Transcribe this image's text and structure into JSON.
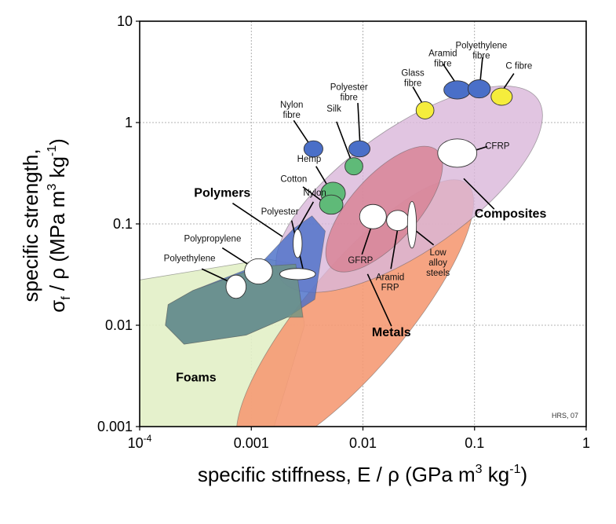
{
  "chart_data": {
    "type": "scatter",
    "title": "",
    "xlabel": "specific stiffness, E / ρ (GPa m",
    "xlabel_sup": "3",
    "xlabel_unit": " kg",
    "xlabel_sup2": "-1",
    "xlabel_end": ")",
    "ylabel_line1": "specific strength,",
    "ylabel_sigma": "σ",
    "ylabel_sub": "f",
    "ylabel_rest": " / ρ (MPa m",
    "ylabel_sup": "3",
    "ylabel_unit": " kg",
    "ylabel_sup2": "-1",
    "ylabel_end": ")",
    "x_scale": "log",
    "y_scale": "log",
    "xlim": [
      0.0001,
      1
    ],
    "ylim": [
      0.001,
      10
    ],
    "grid": true,
    "x_ticks": [
      {
        "value": 0.0001,
        "label": "10",
        "sup": "-4"
      },
      {
        "value": 0.001,
        "label": "0.001",
        "sup": ""
      },
      {
        "value": 0.01,
        "label": "0.01",
        "sup": ""
      },
      {
        "value": 0.1,
        "label": "0.1",
        "sup": ""
      },
      {
        "value": 1,
        "label": "1",
        "sup": ""
      }
    ],
    "y_ticks": [
      {
        "value": 10,
        "label": "10"
      },
      {
        "value": 1,
        "label": "1"
      },
      {
        "value": 0.1,
        "label": "0.1"
      },
      {
        "value": 0.01,
        "label": "0.01"
      },
      {
        "value": 0.001,
        "label": "0.001"
      }
    ],
    "regions": [
      {
        "name": "Foams",
        "color": "#e2f0c6",
        "opacity": 0.9,
        "polygon": [
          [
            0.0001,
            0.028
          ],
          [
            0.0014,
            0.045
          ],
          [
            0.0025,
            0.04
          ],
          [
            0.003,
            0.01
          ],
          [
            0.0016,
            0.001
          ],
          [
            0.0001,
            0.001
          ]
        ]
      },
      {
        "name": "Metals",
        "color": "#f59a74",
        "opacity": 0.9,
        "center": [
          0.0085,
          0.012
        ],
        "rx_dec": 0.46,
        "ry_dec": 1.72,
        "angle_deg": 40
      },
      {
        "name": "Composites",
        "color": "#d9b7d9",
        "opacity": 0.8,
        "center": [
          0.026,
          0.22
        ],
        "rx_dec": 0.55,
        "ry_dec": 1.55,
        "angle_deg": 55
      },
      {
        "name": "Polymers",
        "color": "#4a6fc8",
        "opacity": 0.82,
        "polygon": [
          [
            0.00018,
            0.016
          ],
          [
            0.0003,
            0.022
          ],
          [
            0.0012,
            0.04
          ],
          [
            0.0024,
            0.09
          ],
          [
            0.0035,
            0.12
          ],
          [
            0.0046,
            0.085
          ],
          [
            0.0037,
            0.018
          ],
          [
            0.0021,
            0.012
          ],
          [
            0.0009,
            0.008
          ],
          [
            0.00025,
            0.0065
          ],
          [
            0.00017,
            0.01
          ]
        ]
      }
    ],
    "overlays": [
      {
        "name": "Polymers-Foams overlap",
        "color": "#6d9482",
        "opacity": 0.8,
        "polygon": [
          [
            0.00018,
            0.016
          ],
          [
            0.0003,
            0.022
          ],
          [
            0.0012,
            0.038
          ],
          [
            0.0025,
            0.04
          ],
          [
            0.0029,
            0.012
          ],
          [
            0.0021,
            0.012
          ],
          [
            0.0009,
            0.008
          ],
          [
            0.00025,
            0.0065
          ],
          [
            0.00017,
            0.01
          ]
        ]
      },
      {
        "name": "Composites-Metals overlap",
        "color": "#d88496",
        "opacity": 0.85,
        "center": [
          0.0155,
          0.14
        ],
        "rx_dec": 0.3,
        "ry_dec": 0.78,
        "angle_deg": 42
      }
    ],
    "points": [
      {
        "label": "Nylon fibre",
        "x": 0.0036,
        "y": 0.55,
        "color": "#4a6fc8",
        "w_dec": 0.17,
        "h_dec": 0.16
      },
      {
        "label": "Polyester fibre",
        "x": 0.0093,
        "y": 0.55,
        "color": "#4a6fc8",
        "w_dec": 0.19,
        "h_dec": 0.16
      },
      {
        "label": "Silk",
        "x": 0.0083,
        "y": 0.37,
        "color": "#5fba78",
        "w_dec": 0.16,
        "h_dec": 0.17
      },
      {
        "label": "Hemp",
        "x": 0.0054,
        "y": 0.2,
        "color": "#5fba78",
        "w_dec": 0.22,
        "h_dec": 0.22
      },
      {
        "label": "Cotton",
        "x": 0.0052,
        "y": 0.155,
        "color": "#5fba78",
        "w_dec": 0.21,
        "h_dec": 0.19
      },
      {
        "label": "Glass fibre",
        "x": 0.036,
        "y": 1.32,
        "color": "#f5ed3c",
        "w_dec": 0.16,
        "h_dec": 0.17
      },
      {
        "label": "Aramid fibre",
        "x": 0.07,
        "y": 2.1,
        "color": "#4a6fc8",
        "w_dec": 0.24,
        "h_dec": 0.18
      },
      {
        "label": "Polyethylene fibre",
        "x": 0.11,
        "y": 2.15,
        "color": "#4a6fc8",
        "w_dec": 0.2,
        "h_dec": 0.18
      },
      {
        "label": "C fibre",
        "x": 0.175,
        "y": 1.8,
        "color": "#f5ed3c",
        "w_dec": 0.19,
        "h_dec": 0.17
      },
      {
        "label": "CFRP",
        "x": 0.07,
        "y": 0.5,
        "color": "#ffffff",
        "w_dec": 0.35,
        "h_dec": 0.28
      },
      {
        "label": "GFRP",
        "x": 0.0123,
        "y": 0.118,
        "color": "#ffffff",
        "w_dec": 0.24,
        "h_dec": 0.24
      },
      {
        "label": "Aramid FRP",
        "x": 0.0205,
        "y": 0.108,
        "color": "#ffffff",
        "w_dec": 0.2,
        "h_dec": 0.2
      },
      {
        "label": "Low alloy steels",
        "x": 0.0275,
        "y": 0.098,
        "color": "#ffffff",
        "w_dec": 0.08,
        "h_dec": 0.46
      },
      {
        "label": "Nylon",
        "x": 0.0026,
        "y": 0.064,
        "color": "#ffffff",
        "w_dec": 0.08,
        "h_dec": 0.28
      },
      {
        "label": "Polyester",
        "x": 0.0026,
        "y": 0.032,
        "color": "#ffffff",
        "w_dec": 0.32,
        "h_dec": 0.11
      },
      {
        "label": "Polypropylene",
        "x": 0.00116,
        "y": 0.034,
        "color": "#ffffff",
        "w_dec": 0.25,
        "h_dec": 0.25
      },
      {
        "label": "Polyethylene",
        "x": 0.00073,
        "y": 0.024,
        "color": "#ffffff",
        "w_dec": 0.18,
        "h_dec": 0.23
      }
    ],
    "annotations": [
      {
        "lines": [
          "Polyethylene",
          "fibre"
        ],
        "bold": false,
        "x": 0.115,
        "y": 5.4,
        "anchor": "middle"
      },
      {
        "lines": [
          "Aramid",
          "fibre"
        ],
        "bold": false,
        "x": 0.052,
        "y": 4.5,
        "anchor": "middle"
      },
      {
        "lines": [
          "Glass",
          "fibre"
        ],
        "bold": false,
        "x": 0.028,
        "y": 2.9,
        "anchor": "middle"
      },
      {
        "lines": [
          "C fibre"
        ],
        "bold": false,
        "x": 0.25,
        "y": 3.4,
        "anchor": "middle"
      },
      {
        "lines": [
          "Polyester",
          "fibre"
        ],
        "bold": false,
        "x": 0.0075,
        "y": 2.1,
        "anchor": "middle"
      },
      {
        "lines": [
          "Nylon",
          "fibre"
        ],
        "bold": false,
        "x": 0.0023,
        "y": 1.4,
        "anchor": "middle"
      },
      {
        "lines": [
          "Silk"
        ],
        "bold": false,
        "x": 0.0055,
        "y": 1.28,
        "anchor": "middle"
      },
      {
        "lines": [
          "Hemp"
        ],
        "bold": false,
        "x": 0.0033,
        "y": 0.41,
        "anchor": "middle"
      },
      {
        "lines": [
          "Cotton"
        ],
        "bold": false,
        "x": 0.0024,
        "y": 0.26,
        "anchor": "middle"
      },
      {
        "lines": [
          "Nylon"
        ],
        "bold": false,
        "x": 0.0037,
        "y": 0.19,
        "anchor": "middle"
      },
      {
        "lines": [
          "Polyester"
        ],
        "bold": false,
        "x": 0.0018,
        "y": 0.124,
        "anchor": "middle"
      },
      {
        "lines": [
          "Polypropylene"
        ],
        "bold": false,
        "x": 0.00045,
        "y": 0.067,
        "anchor": "middle"
      },
      {
        "lines": [
          "Polyethylene"
        ],
        "bold": false,
        "x": 0.00028,
        "y": 0.043,
        "anchor": "middle"
      },
      {
        "lines": [
          "CFRP"
        ],
        "bold": false,
        "x": 0.16,
        "y": 0.55,
        "anchor": "middle"
      },
      {
        "lines": [
          "GFRP"
        ],
        "bold": false,
        "x": 0.0095,
        "y": 0.041,
        "anchor": "middle"
      },
      {
        "lines": [
          "Aramid",
          "FRP"
        ],
        "bold": false,
        "x": 0.0175,
        "y": 0.028,
        "anchor": "middle"
      },
      {
        "lines": [
          "Low",
          "alloy",
          "steels"
        ],
        "bold": false,
        "x": 0.047,
        "y": 0.049,
        "anchor": "middle"
      },
      {
        "lines": [
          "Polymers"
        ],
        "bold": true,
        "x": 0.00055,
        "y": 0.185,
        "anchor": "middle"
      },
      {
        "lines": [
          "Composites"
        ],
        "bold": true,
        "x": 0.21,
        "y": 0.115,
        "anchor": "middle"
      },
      {
        "lines": [
          "Metals"
        ],
        "bold": true,
        "x": 0.018,
        "y": 0.0078,
        "anchor": "middle"
      },
      {
        "lines": [
          "Foams"
        ],
        "bold": true,
        "x": 0.00032,
        "y": 0.0028,
        "anchor": "middle"
      }
    ],
    "leaders": [
      {
        "from": [
          0.118,
          4.4
        ],
        "to": [
          0.112,
          2.45
        ]
      },
      {
        "from": [
          0.052,
          3.8
        ],
        "to": [
          0.068,
          2.45
        ]
      },
      {
        "from": [
          0.028,
          2.25
        ],
        "to": [
          0.034,
          1.55
        ]
      },
      {
        "from": [
          0.225,
          3.05
        ],
        "to": [
          0.182,
          2.15
        ]
      },
      {
        "from": [
          0.009,
          1.56
        ],
        "to": [
          0.0094,
          0.64
        ]
      },
      {
        "from": [
          0.0024,
          1.05
        ],
        "to": [
          0.0033,
          0.62
        ]
      },
      {
        "from": [
          0.0058,
          1.02
        ],
        "to": [
          0.0078,
          0.43
        ]
      },
      {
        "from": [
          0.0038,
          0.37
        ],
        "to": [
          0.0047,
          0.25
        ]
      },
      {
        "from": [
          0.0029,
          0.232
        ],
        "to": [
          0.0044,
          0.165
        ]
      },
      {
        "from": [
          0.0036,
          0.165
        ],
        "to": [
          0.0026,
          0.088
        ]
      },
      {
        "from": [
          0.0023,
          0.108
        ],
        "to": [
          0.0029,
          0.036
        ]
      },
      {
        "from": [
          0.00055,
          0.058
        ],
        "to": [
          0.001,
          0.038
        ]
      },
      {
        "from": [
          0.00036,
          0.036
        ],
        "to": [
          0.00063,
          0.027
        ]
      },
      {
        "from": [
          0.13,
          0.58
        ],
        "to": [
          0.1,
          0.53
        ]
      },
      {
        "from": [
          0.0098,
          0.05
        ],
        "to": [
          0.012,
          0.097
        ]
      },
      {
        "from": [
          0.0178,
          0.036
        ],
        "to": [
          0.0205,
          0.09
        ]
      },
      {
        "from": [
          0.043,
          0.062
        ],
        "to": [
          0.03,
          0.085
        ]
      },
      {
        "from": [
          0.00068,
          0.16
        ],
        "to": [
          0.0019,
          0.075
        ]
      },
      {
        "from": [
          0.15,
          0.14
        ],
        "to": [
          0.08,
          0.28
        ]
      },
      {
        "from": [
          0.018,
          0.0098
        ],
        "to": [
          0.011,
          0.032
        ]
      }
    ],
    "credit": "HRS, 07"
  }
}
